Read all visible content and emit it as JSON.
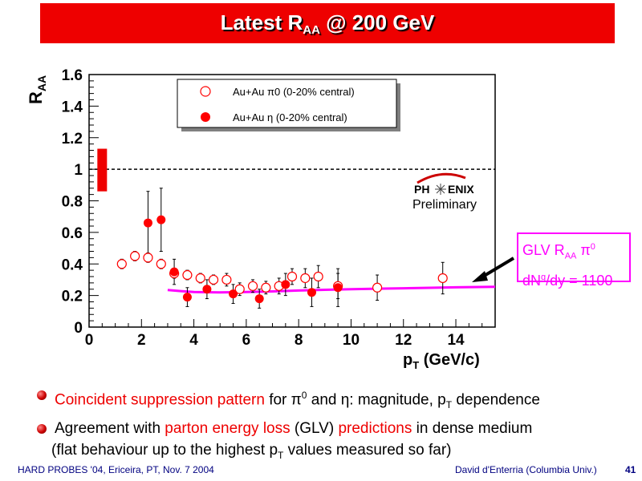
{
  "slide": {
    "title_main": "Latest R",
    "title_sub": "AA",
    "title_rest": " @ 200 GeV",
    "footer_left": "HARD PROBES '04, Ericeira, PT, Nov. 7 2004",
    "footer_right": "David d'Enterria (Columbia Univ.)",
    "page_number": "41"
  },
  "bullets": {
    "b1_red": "Coincident suppression pattern",
    "b1_mid": " for π",
    "b1_sup": "0",
    "b1_rest": " and η: magnitude, p",
    "b1_sub": "T",
    "b1_end": " dependence",
    "b2_start": "Agreement with ",
    "b2_red1": "parton energy loss",
    "b2_mid": " (GLV) ",
    "b2_red2": "predictions",
    "b2_end": " in dense medium",
    "b3_start": "(flat behaviour up to the highest p",
    "b3_sub": "T",
    "b3_end": " values measured so far)"
  },
  "glv": {
    "line1_a": "GLV R",
    "line1_sub": "AA",
    "line1_b": " π",
    "line1_sup": "0",
    "line2_a": "dN",
    "line2_sup": "g",
    "line2_b": "/dy = 1100"
  },
  "logo": {
    "text_left": "PH",
    "text_right": "ENIX",
    "preliminary": "Preliminary"
  },
  "colors": {
    "title_bg": "#ee0000",
    "pi0_marker": "#ff0000",
    "eta_marker": "#ff0000",
    "theory_curve": "#ff00ff",
    "accent_text": "#ee0000",
    "footer": "#000080"
  },
  "chart_data": {
    "type": "scatter",
    "title": "",
    "xlabel_main": "p",
    "xlabel_sub": "T",
    "xlabel_rest": " (GeV/c)",
    "ylabel_main": "R",
    "ylabel_sub": "AA",
    "xlim": [
      0,
      15.5
    ],
    "ylim": [
      0,
      1.6
    ],
    "x_ticks": [
      "0",
      "2",
      "4",
      "6",
      "8",
      "10",
      "12",
      "14"
    ],
    "y_ticks": [
      "0",
      "0.2",
      "0.4",
      "0.6",
      "0.8",
      "1",
      "1.2",
      "1.4",
      "1.6"
    ],
    "x_tick_values": [
      0,
      2,
      4,
      6,
      8,
      10,
      12,
      14
    ],
    "y_tick_values": [
      0,
      0.2,
      0.4,
      0.6,
      0.8,
      1.0,
      1.2,
      1.4,
      1.6
    ],
    "reference_line": 1.0,
    "normalization_box": {
      "x": 0.5,
      "ylow": 0.86,
      "yhigh": 1.13
    },
    "legend_position": "top",
    "legend": [
      {
        "label": "Au+Au π0 (0-20% central)",
        "marker": "open-circle"
      },
      {
        "label": "Au+Au η (0-20% central)",
        "marker": "filled-circle"
      }
    ],
    "series": [
      {
        "name": "Au+Au π0 (0-20% central)",
        "marker": "open-circle",
        "points": [
          {
            "x": 1.25,
            "y": 0.4,
            "err": 0.03
          },
          {
            "x": 1.75,
            "y": 0.45,
            "err": 0.03
          },
          {
            "x": 2.25,
            "y": 0.44,
            "err": 0.03
          },
          {
            "x": 2.75,
            "y": 0.4,
            "err": 0.03
          },
          {
            "x": 3.25,
            "y": 0.34,
            "err": 0.03
          },
          {
            "x": 3.75,
            "y": 0.33,
            "err": 0.03
          },
          {
            "x": 4.25,
            "y": 0.31,
            "err": 0.03
          },
          {
            "x": 4.75,
            "y": 0.3,
            "err": 0.03
          },
          {
            "x": 5.25,
            "y": 0.3,
            "err": 0.04
          },
          {
            "x": 5.75,
            "y": 0.24,
            "err": 0.04
          },
          {
            "x": 6.25,
            "y": 0.26,
            "err": 0.04
          },
          {
            "x": 6.75,
            "y": 0.25,
            "err": 0.04
          },
          {
            "x": 7.25,
            "y": 0.26,
            "err": 0.05
          },
          {
            "x": 7.75,
            "y": 0.32,
            "err": 0.05
          },
          {
            "x": 8.25,
            "y": 0.31,
            "err": 0.06
          },
          {
            "x": 8.75,
            "y": 0.32,
            "err": 0.07
          },
          {
            "x": 9.5,
            "y": 0.26,
            "err": 0.08
          },
          {
            "x": 11.0,
            "y": 0.25,
            "err": 0.08
          },
          {
            "x": 13.5,
            "y": 0.31,
            "err": 0.1
          }
        ]
      },
      {
        "name": "Au+Au η (0-20% central)",
        "marker": "filled-circle",
        "points": [
          {
            "x": 2.25,
            "y": 0.66,
            "err": 0.2
          },
          {
            "x": 2.75,
            "y": 0.68,
            "err": 0.2
          },
          {
            "x": 3.25,
            "y": 0.35,
            "err": 0.08
          },
          {
            "x": 3.75,
            "y": 0.19,
            "err": 0.06
          },
          {
            "x": 4.5,
            "y": 0.24,
            "err": 0.06
          },
          {
            "x": 5.5,
            "y": 0.21,
            "err": 0.06
          },
          {
            "x": 6.5,
            "y": 0.18,
            "err": 0.06
          },
          {
            "x": 7.5,
            "y": 0.27,
            "err": 0.07
          },
          {
            "x": 8.5,
            "y": 0.22,
            "err": 0.09
          },
          {
            "x": 9.5,
            "y": 0.25,
            "err": 0.12
          }
        ]
      },
      {
        "name": "GLV",
        "marker": "line",
        "points": [
          {
            "x": 3.0,
            "y": 0.235
          },
          {
            "x": 3.5,
            "y": 0.228
          },
          {
            "x": 4.0,
            "y": 0.222
          },
          {
            "x": 5.0,
            "y": 0.22
          },
          {
            "x": 6.0,
            "y": 0.222
          },
          {
            "x": 7.0,
            "y": 0.226
          },
          {
            "x": 8.0,
            "y": 0.232
          },
          {
            "x": 9.0,
            "y": 0.236
          },
          {
            "x": 10.0,
            "y": 0.24
          },
          {
            "x": 11.0,
            "y": 0.243
          },
          {
            "x": 12.0,
            "y": 0.246
          },
          {
            "x": 13.0,
            "y": 0.249
          },
          {
            "x": 14.0,
            "y": 0.252
          },
          {
            "x": 15.5,
            "y": 0.255
          }
        ]
      }
    ]
  }
}
